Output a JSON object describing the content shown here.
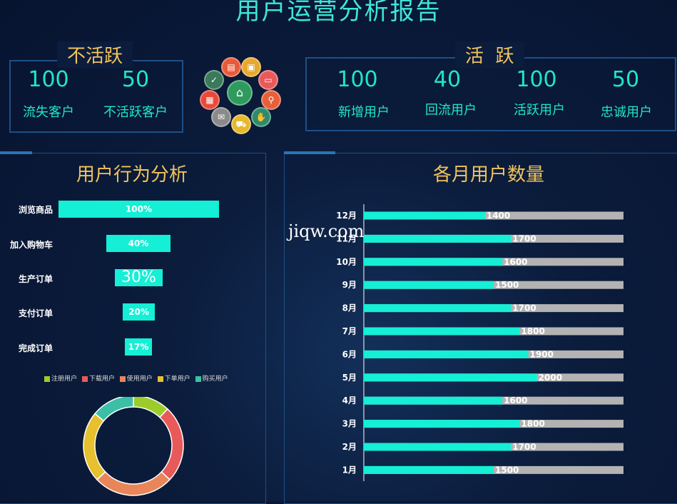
{
  "title": "用户运营分析报告",
  "inactive": {
    "title": "不活跃",
    "items": [
      {
        "value": "100",
        "label": "流失客户"
      },
      {
        "value": "50",
        "label": "不活跃客户"
      }
    ]
  },
  "active": {
    "title": "活  跃",
    "items": [
      {
        "value": "100",
        "label": "新增用户"
      },
      {
        "value": "40",
        "label": "回流用户"
      },
      {
        "value": "100",
        "label": "活跃用户"
      },
      {
        "value": "50",
        "label": "忠诚用户"
      }
    ]
  },
  "icons": [
    "document-icon",
    "briefcase-icon",
    "browser-icon",
    "search-icon",
    "handshake-icon",
    "cart-icon",
    "mail-icon",
    "calendar-icon",
    "thumbs-up-icon",
    "store-icon"
  ],
  "behavior": {
    "title": "用户行为分析",
    "steps": [
      {
        "label": "浏览商品",
        "pct": 100,
        "text": "100%"
      },
      {
        "label": "加入购物车",
        "pct": 40,
        "text": "40%"
      },
      {
        "label": "生产订单",
        "pct": 30,
        "text": "30%"
      },
      {
        "label": "支付订单",
        "pct": 20,
        "text": "20%"
      },
      {
        "label": "完成订单",
        "pct": 17,
        "text": "17%"
      }
    ],
    "legend": [
      {
        "name": "注册用户",
        "color": "#9ccc2c"
      },
      {
        "name": "下载用户",
        "color": "#e85a5a"
      },
      {
        "name": "使用用户",
        "color": "#e8865a"
      },
      {
        "name": "下单用户",
        "color": "#e6c02e"
      },
      {
        "name": "购买用户",
        "color": "#3cbfa6"
      }
    ]
  },
  "monthly_title": "各月用户数量",
  "watermark": "jiqw.com",
  "chart_data": [
    {
      "type": "bar",
      "orientation": "horizontal",
      "categories": [
        "12月",
        "11月",
        "10月",
        "9月",
        "8月",
        "7月",
        "6月",
        "5月",
        "4月",
        "3月",
        "2月",
        "1月"
      ],
      "values": [
        1400,
        1700,
        1600,
        1500,
        1700,
        1800,
        1900,
        2000,
        1600,
        1800,
        1700,
        1500
      ],
      "xlim": [
        0,
        3000
      ],
      "colors": {
        "bar": "#14efd5",
        "background": "#b3b3b3"
      }
    },
    {
      "type": "pie",
      "donut": true,
      "labels": [
        "注册用户",
        "下载用户",
        "使用用户",
        "下单用户",
        "购买用户"
      ],
      "values": [
        12,
        25,
        26,
        23,
        14
      ],
      "colors": [
        "#9ccc2c",
        "#e85a5a",
        "#e8865a",
        "#e6c02e",
        "#3cbfa6"
      ]
    }
  ]
}
